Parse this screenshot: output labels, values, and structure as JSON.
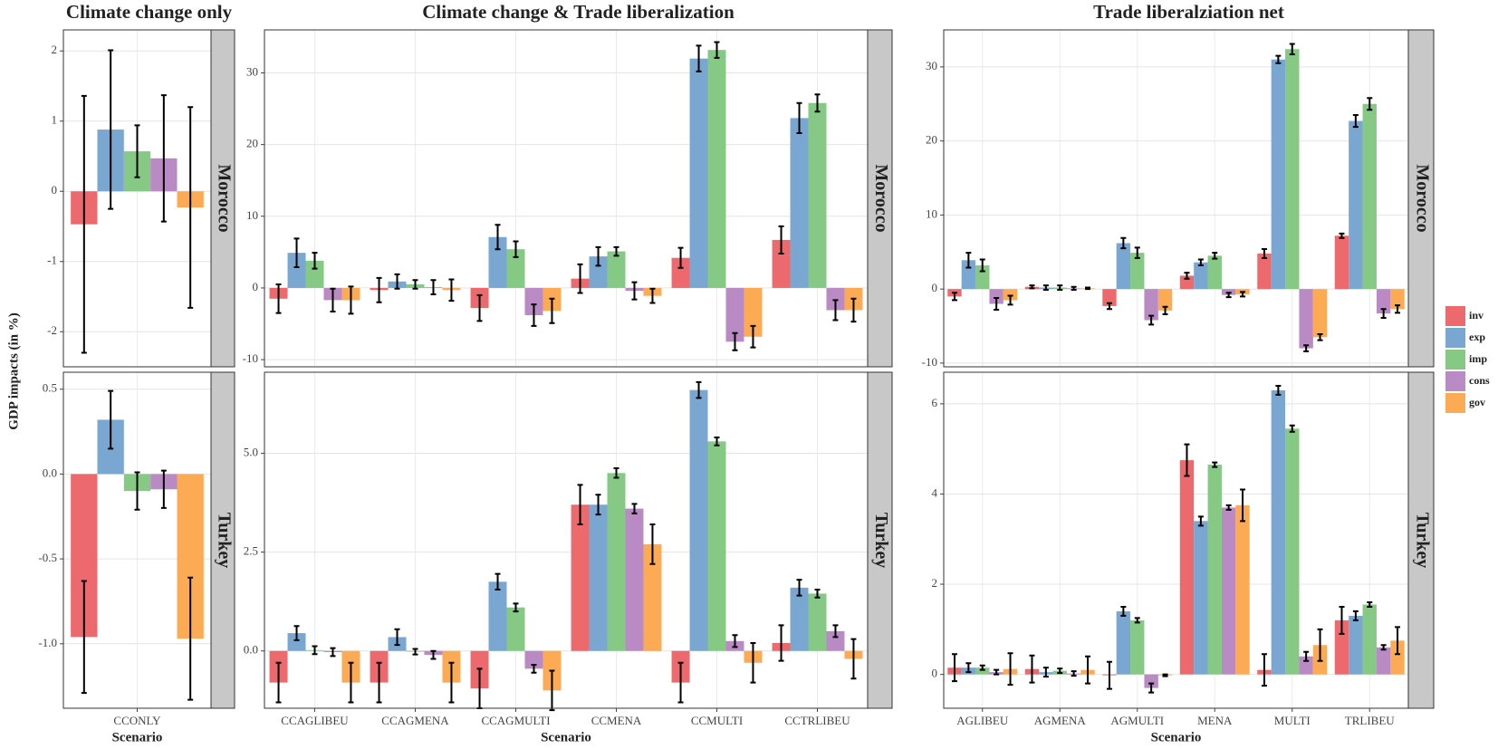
{
  "y_label": "GDP impacts (in %)",
  "legend": [
    {
      "name": "inv",
      "color": "#ec6a6e"
    },
    {
      "name": "exp",
      "color": "#7aa7d1"
    },
    {
      "name": "imp",
      "color": "#85c985"
    },
    {
      "name": "cons",
      "color": "#b98ac4"
    },
    {
      "name": "gov",
      "color": "#fdaa55"
    }
  ],
  "chart_data": [
    {
      "type": "bar",
      "title": "Climate change only",
      "facet": "Morocco",
      "ylim": [
        -2.5,
        2.3
      ],
      "yticks": [
        -2,
        -1,
        0,
        1,
        2
      ],
      "grid": true,
      "series": [
        {
          "values": [
            -0.47
          ],
          "errors": [
            1.83
          ]
        },
        {
          "values": [
            0.88
          ],
          "errors": [
            1.13
          ]
        },
        {
          "values": [
            0.57
          ],
          "errors": [
            0.37
          ]
        },
        {
          "values": [
            0.47
          ],
          "errors": [
            0.9
          ]
        },
        {
          "values": [
            -0.23
          ],
          "errors": [
            1.43
          ]
        }
      ]
    },
    {
      "type": "bar",
      "title": "Climate change & Trade liberalization",
      "facet": "Morocco",
      "ylim": [
        -11,
        36
      ],
      "yticks": [
        -10,
        0,
        10,
        20,
        30
      ],
      "grid": true,
      "series": [
        {
          "values": [
            -1.5,
            -0.3,
            -2.8,
            1.3,
            4.2,
            6.7
          ],
          "errors": [
            2,
            1.7,
            1.8,
            2,
            1.4,
            1.9
          ]
        },
        {
          "values": [
            4.9,
            0.9,
            7.1,
            4.4,
            32,
            23.7
          ],
          "errors": [
            2,
            1,
            1.7,
            1.3,
            1.8,
            2.1
          ]
        },
        {
          "values": [
            3.8,
            0.5,
            5.4,
            5.1,
            33.2,
            25.8
          ],
          "errors": [
            1.1,
            0.6,
            1.1,
            0.6,
            1.1,
            1.2
          ]
        },
        {
          "values": [
            -1.7,
            0.1,
            -3.8,
            -0.4,
            -7.5,
            -3.1
          ],
          "errors": [
            1.6,
            1,
            1.5,
            1.2,
            1.2,
            1.4
          ]
        },
        {
          "values": [
            -1.7,
            -0.3,
            -3.2,
            -1.1,
            -6.8,
            -3.1
          ],
          "errors": [
            1.9,
            1.5,
            1.7,
            1,
            1.5,
            1.6
          ]
        }
      ]
    },
    {
      "type": "bar",
      "title": "Trade liberalziation net",
      "facet": "Morocco",
      "ylim": [
        -10.5,
        35
      ],
      "yticks": [
        -10,
        0,
        10,
        20,
        30
      ],
      "grid": true,
      "series": [
        {
          "values": [
            -1,
            0.3,
            -2.3,
            1.8,
            4.8,
            7.2
          ],
          "errors": [
            0.5,
            0.2,
            0.4,
            0.4,
            0.6,
            0.3
          ]
        },
        {
          "values": [
            3.9,
            0.2,
            6.2,
            3.6,
            31,
            22.7
          ],
          "errors": [
            1,
            0.3,
            0.7,
            0.4,
            0.5,
            0.8
          ]
        },
        {
          "values": [
            3.2,
            0.2,
            4.9,
            4.5,
            32.4,
            25
          ],
          "errors": [
            0.8,
            0.3,
            0.7,
            0.4,
            0.7,
            0.8
          ]
        },
        {
          "values": [
            -2,
            0.1,
            -4.2,
            -0.8,
            -8,
            -3.3
          ],
          "errors": [
            0.8,
            0.2,
            0.6,
            0.3,
            0.4,
            0.6
          ]
        },
        {
          "values": [
            -1.5,
            0.1,
            -2.9,
            -0.7,
            -6.5,
            -2.7
          ],
          "errors": [
            0.6,
            0.1,
            0.5,
            0.3,
            0.4,
            0.5
          ]
        }
      ]
    },
    {
      "type": "bar",
      "facet": "Turkey",
      "x_label": "Scenario",
      "categories": [
        "CCONLY"
      ],
      "ylim": [
        -1.38,
        0.6
      ],
      "yticks": [
        {
          "value": -1,
          "label": "-1.0"
        },
        -0.5,
        {
          "value": 0,
          "label": "0.0"
        },
        0.5
      ],
      "grid": true,
      "series": [
        {
          "values": [
            -0.96
          ],
          "errors": [
            0.33
          ]
        },
        {
          "values": [
            0.32
          ],
          "errors": [
            0.17
          ]
        },
        {
          "values": [
            -0.1
          ],
          "errors": [
            0.11
          ]
        },
        {
          "values": [
            -0.09
          ],
          "errors": [
            0.11
          ]
        },
        {
          "values": [
            -0.97
          ],
          "errors": [
            0.36
          ]
        }
      ]
    },
    {
      "type": "bar",
      "facet": "Turkey",
      "x_label": "Scenario",
      "categories": [
        "CCAGLIBEU",
        "CCAGMENA",
        "CCAGMULTI",
        "CCMENA",
        "CCMULTI",
        "CCTRLIBEU"
      ],
      "ylim": [
        -1.45,
        7.05
      ],
      "yticks": [
        {
          "value": 0,
          "label": "0.0"
        },
        2.5,
        {
          "value": 5,
          "label": "5.0"
        }
      ],
      "grid": true,
      "series": [
        {
          "values": [
            -0.8,
            -0.8,
            -0.95,
            3.7,
            -0.8,
            0.2
          ],
          "errors": [
            0.5,
            0.5,
            0.5,
            0.5,
            0.5,
            0.45
          ]
        },
        {
          "values": [
            0.45,
            0.35,
            1.75,
            3.7,
            6.6,
            1.6
          ],
          "errors": [
            0.18,
            0.2,
            0.2,
            0.25,
            0.2,
            0.2
          ]
        },
        {
          "values": [
            0.02,
            -0.02,
            1.1,
            4.5,
            5.3,
            1.45
          ],
          "errors": [
            0.1,
            0.07,
            0.1,
            0.12,
            0.1,
            0.1
          ]
        },
        {
          "values": [
            -0.03,
            -0.1,
            -0.45,
            3.6,
            0.25,
            0.5
          ],
          "errors": [
            0.1,
            0.1,
            0.1,
            0.12,
            0.15,
            0.15
          ]
        },
        {
          "values": [
            -0.8,
            -0.8,
            -1,
            2.7,
            -0.3,
            -0.2
          ],
          "errors": [
            0.5,
            0.5,
            0.5,
            0.5,
            0.5,
            0.5
          ]
        }
      ]
    },
    {
      "type": "bar",
      "facet": "Turkey",
      "x_label": "Scenario",
      "categories": [
        "AGLIBEU",
        "AGMENA",
        "AGMULTI",
        "MENA",
        "MULTI",
        "TRLIBEU"
      ],
      "ylim": [
        -0.75,
        6.7
      ],
      "yticks": [
        0,
        2,
        4,
        6
      ],
      "grid": true,
      "series": [
        {
          "values": [
            0.15,
            0.12,
            -0.02,
            4.75,
            0.1,
            1.2
          ],
          "errors": [
            0.3,
            0.3,
            0.3,
            0.35,
            0.35,
            0.3
          ]
        },
        {
          "values": [
            0.15,
            0.05,
            1.4,
            3.4,
            6.3,
            1.3
          ],
          "errors": [
            0.1,
            0.1,
            0.1,
            0.1,
            0.1,
            0.1
          ]
        },
        {
          "values": [
            0.15,
            0.08,
            1.2,
            4.65,
            5.45,
            1.55
          ],
          "errors": [
            0.05,
            0.05,
            0.05,
            0.05,
            0.07,
            0.05
          ]
        },
        {
          "values": [
            0.05,
            0.02,
            -0.3,
            3.7,
            0.4,
            0.6
          ],
          "errors": [
            0.05,
            0.05,
            0.1,
            0.05,
            0.1,
            0.05
          ]
        },
        {
          "values": [
            0.12,
            0.1,
            -0.02,
            3.75,
            0.65,
            0.75
          ],
          "errors": [
            0.35,
            0.3,
            0.02,
            0.35,
            0.35,
            0.3
          ]
        }
      ]
    }
  ]
}
